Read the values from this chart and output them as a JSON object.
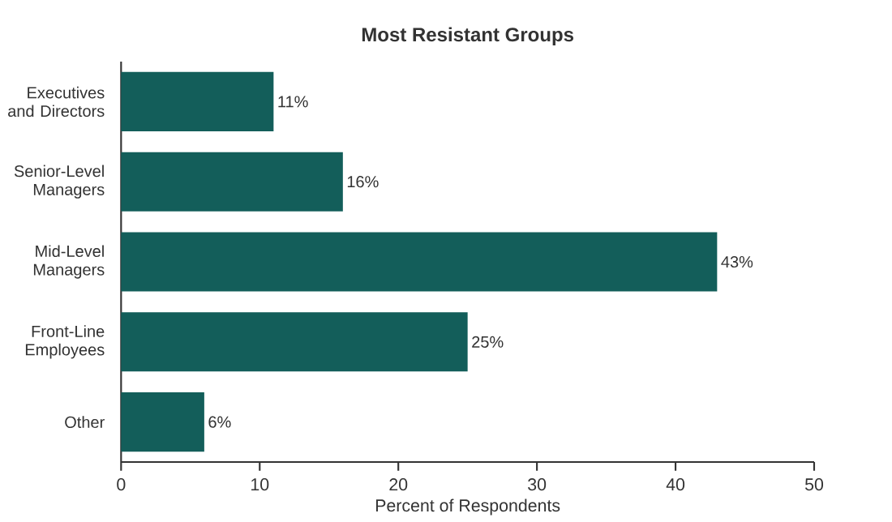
{
  "chart_data": {
    "type": "bar",
    "orientation": "horizontal",
    "title": "Most Resistant Groups",
    "xlabel": "Percent of Respondents",
    "categories": [
      "Executives and Directors",
      "Senior-Level Managers",
      "Mid-Level Managers",
      "Front-Line Employees",
      "Other"
    ],
    "values": [
      11,
      16,
      43,
      25,
      6
    ],
    "value_labels": [
      "11%",
      "16%",
      "43%",
      "25%",
      "6%"
    ],
    "color": "#135e5a",
    "xlim": [
      0,
      50
    ],
    "xticks": [
      0,
      10,
      20,
      30,
      40,
      50
    ]
  }
}
